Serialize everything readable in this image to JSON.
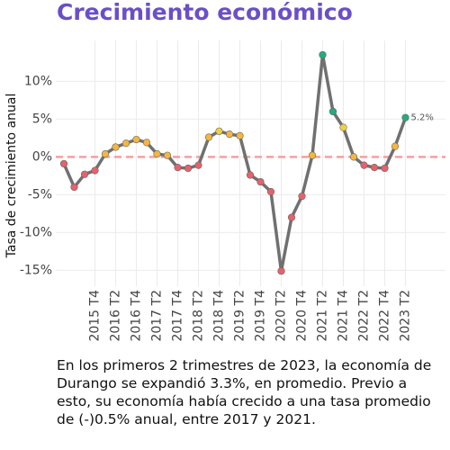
{
  "chart_data": {
    "type": "line",
    "title": "Crecimiento económico",
    "y_label": "Tasa de crecimiento anual",
    "categories": [
      null,
      null,
      null,
      "2015 T4",
      null,
      "2016 T2",
      null,
      "2016 T4",
      null,
      "2017 T2",
      null,
      "2017 T4",
      null,
      "2018 T2",
      null,
      "2018 T4",
      null,
      "2019 T2",
      null,
      "2019 T4",
      null,
      "2020 T2",
      null,
      "2020 T4",
      null,
      "2021 T2",
      null,
      "2021 T4",
      null,
      "2022 T2",
      null,
      "2022 T4",
      null,
      "2023 T2"
    ],
    "series": [
      {
        "color": "#707070",
        "values": [
          -0.9,
          -4.0,
          -2.3,
          -1.8,
          0.4,
          1.3,
          1.8,
          2.3,
          1.9,
          0.4,
          0.2,
          -1.4,
          -1.5,
          -1.1,
          2.6,
          3.4,
          3.0,
          2.8,
          -2.4,
          -3.3,
          -4.6,
          -15.1,
          -8.0,
          -5.2,
          0.2,
          13.5,
          6.0,
          3.9,
          0.0,
          -1.1,
          -1.4,
          -1.5,
          1.4,
          5.2
        ],
        "value_labels": [
          null,
          null,
          null,
          null,
          null,
          null,
          null,
          null,
          null,
          null,
          null,
          null,
          null,
          null,
          null,
          null,
          null,
          null,
          null,
          null,
          null,
          null,
          null,
          null,
          null,
          null,
          null,
          null,
          null,
          null,
          null,
          null,
          null,
          "5.2%"
        ],
        "point_colors": [
          "#e8616a",
          "#e8616a",
          "#e8616a",
          "#e8616a",
          "#f4b63f",
          "#f4b63f",
          "#f4b63f",
          "#f4b63f",
          "#f4b63f",
          "#f4b63f",
          "#f4b63f",
          "#e8616a",
          "#e8616a",
          "#e8616a",
          "#f4b63f",
          "#f0d040",
          "#f4b63f",
          "#f4b63f",
          "#e8616a",
          "#e8616a",
          "#e8616a",
          "#e8616a",
          "#e8616a",
          "#e8616a",
          "#f4b63f",
          "#1fae7f",
          "#1fae7f",
          "#f0d040",
          "#f4b63f",
          "#e8616a",
          "#e8616a",
          "#e8616a",
          "#f4b63f",
          "#1fae7f"
        ]
      }
    ],
    "ylim": [
      -17.1,
      15.4
    ],
    "yticks": [
      {
        "value": -15,
        "label": "-15%"
      },
      {
        "value": -10,
        "label": "-10%"
      },
      {
        "value": -5,
        "label": "-5%"
      },
      {
        "value": 0,
        "label": "0%"
      },
      {
        "value": 5,
        "label": "5%"
      },
      {
        "value": 10,
        "label": "10%"
      }
    ],
    "hline": 0,
    "hline_color": "#f4a0a0",
    "grid": true,
    "caption": "En los primeros 2 trimestres de 2023, la economía de Durango se expandió 3.3%, en promedio. Previo a esto, su economía había crecido a una tasa promedio de (-)0.5% anual, entre 2017 y 2021."
  }
}
